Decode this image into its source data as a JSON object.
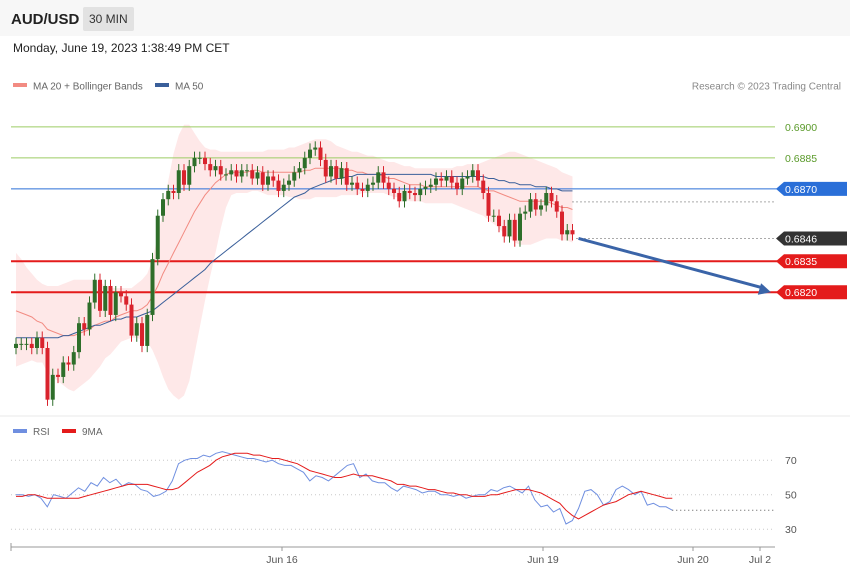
{
  "header": {
    "pair": "AUD/USD",
    "timeframe": "30 MIN",
    "datetime": "Monday, June 19, 2023 1:38:49 PM CET"
  },
  "legend": {
    "ma20": "MA 20 + Bollinger Bands",
    "ma50": "MA 50",
    "credit": "Research © 2023 Trading Central",
    "rsi": "RSI",
    "ma9": "9MA"
  },
  "colors": {
    "bull": "#2e6e2a",
    "bear": "#d9232d",
    "ma20": "#f28b82",
    "ma50": "#3a5f9a",
    "band": "#fde0e0",
    "resistance": "#9ccc65",
    "pivot": "#2a6fd8",
    "support": "#e41b1b",
    "current": "#333333",
    "rsi": "#6f8fe0",
    "ma9": "#e41b1b"
  },
  "chart_data": [
    {
      "type": "candlestick",
      "ylim": [
        0.6763,
        0.6913
      ],
      "x_ticks": [
        "Jun 16",
        "Jun 19",
        "Jun 20",
        "Jul 2"
      ],
      "levels": [
        {
          "value": 0.69,
          "label": "0.6900",
          "role": "resistance"
        },
        {
          "value": 0.6885,
          "label": "0.6885",
          "role": "resistance"
        },
        {
          "value": 0.687,
          "label": "0.6870",
          "role": "pivot"
        },
        {
          "value": 0.6846,
          "label": "0.6846",
          "role": "current"
        },
        {
          "value": 0.6835,
          "label": "0.6835",
          "role": "support"
        },
        {
          "value": 0.682,
          "label": "0.6820",
          "role": "support"
        }
      ],
      "forecast_arrow": {
        "from": 0.6846,
        "to": 0.682
      },
      "candles_close": [
        0.6795,
        0.6795,
        0.6795,
        0.6793,
        0.6798,
        0.6793,
        0.6768,
        0.678,
        0.6779,
        0.6786,
        0.6785,
        0.6791,
        0.6805,
        0.6802,
        0.6815,
        0.6826,
        0.6811,
        0.6823,
        0.6809,
        0.682,
        0.6818,
        0.6814,
        0.6799,
        0.6805,
        0.6794,
        0.6809,
        0.6836,
        0.6857,
        0.6865,
        0.6869,
        0.6868,
        0.6879,
        0.6872,
        0.6881,
        0.6885,
        0.6885,
        0.6882,
        0.6879,
        0.6881,
        0.6877,
        0.6877,
        0.6879,
        0.6876,
        0.6879,
        0.6879,
        0.6875,
        0.6878,
        0.6872,
        0.6876,
        0.6874,
        0.6869,
        0.6872,
        0.6874,
        0.6878,
        0.688,
        0.6885,
        0.6889,
        0.689,
        0.6884,
        0.6876,
        0.6881,
        0.6875,
        0.688,
        0.6872,
        0.6873,
        0.687,
        0.6869,
        0.6872,
        0.6873,
        0.6878,
        0.6873,
        0.687,
        0.6868,
        0.6864,
        0.6869,
        0.6868,
        0.6867,
        0.687,
        0.6871,
        0.6872,
        0.6875,
        0.6874,
        0.6876,
        0.6873,
        0.687,
        0.6875,
        0.6876,
        0.6879,
        0.6874,
        0.6868,
        0.6857,
        0.6857,
        0.6852,
        0.6847,
        0.6855,
        0.6845,
        0.6858,
        0.6859,
        0.6865,
        0.686,
        0.6862,
        0.6868,
        0.6864,
        0.6859,
        0.6848,
        0.685,
        0.6848
      ],
      "ma20": [
        0.6811,
        0.681,
        0.6809,
        0.6808,
        0.6806,
        0.6805,
        0.6802,
        0.6801,
        0.68,
        0.6799,
        0.6799,
        0.6799,
        0.68,
        0.6801,
        0.6802,
        0.6804,
        0.6805,
        0.6806,
        0.6806,
        0.6808,
        0.6809,
        0.681,
        0.6811,
        0.6811,
        0.6812,
        0.6814,
        0.6818,
        0.6823,
        0.6829,
        0.6834,
        0.6839,
        0.6844,
        0.6849,
        0.6854,
        0.6859,
        0.6863,
        0.6867,
        0.687,
        0.6873,
        0.6875,
        0.6877,
        0.6878,
        0.6878,
        0.6878,
        0.6878,
        0.6879,
        0.6879,
        0.6878,
        0.6878,
        0.6878,
        0.6878,
        0.6878,
        0.6878,
        0.6878,
        0.6878,
        0.6879,
        0.6879,
        0.688,
        0.688,
        0.688,
        0.688,
        0.688,
        0.688,
        0.6879,
        0.6879,
        0.6878,
        0.6878,
        0.6877,
        0.6877,
        0.6877,
        0.6876,
        0.6875,
        0.6875,
        0.6874,
        0.6873,
        0.6872,
        0.6872,
        0.6872,
        0.6871,
        0.6871,
        0.6871,
        0.6871,
        0.6871,
        0.6871,
        0.6871,
        0.6871,
        0.6871,
        0.6871,
        0.6871,
        0.687,
        0.6869,
        0.6869,
        0.6868,
        0.6867,
        0.6866,
        0.6865,
        0.6864,
        0.6864,
        0.6864,
        0.6864,
        0.6864,
        0.6864,
        0.6863,
        0.6862,
        0.6861,
        0.6861,
        0.686
      ],
      "bb_upper": [
        0.6839,
        0.6836,
        0.6832,
        0.6829,
        0.6826,
        0.6824,
        0.6823,
        0.6823,
        0.6823,
        0.6824,
        0.6825,
        0.6826,
        0.6826,
        0.6826,
        0.6826,
        0.6826,
        0.6825,
        0.6823,
        0.6822,
        0.6822,
        0.6822,
        0.6822,
        0.6822,
        0.6824,
        0.6826,
        0.6829,
        0.6836,
        0.6847,
        0.686,
        0.6874,
        0.6887,
        0.6896,
        0.6901,
        0.6901,
        0.6897,
        0.6893,
        0.689,
        0.6889,
        0.6889,
        0.6888,
        0.6888,
        0.6888,
        0.6888,
        0.6888,
        0.6888,
        0.6888,
        0.6888,
        0.6888,
        0.6889,
        0.6889,
        0.6889,
        0.6889,
        0.689,
        0.689,
        0.6891,
        0.6892,
        0.6893,
        0.6894,
        0.6894,
        0.6894,
        0.6893,
        0.6891,
        0.689,
        0.6889,
        0.6888,
        0.6888,
        0.6887,
        0.6886,
        0.6886,
        0.6885,
        0.6884,
        0.6883,
        0.6883,
        0.6882,
        0.6881,
        0.6881,
        0.688,
        0.688,
        0.688,
        0.688,
        0.688,
        0.688,
        0.688,
        0.688,
        0.6881,
        0.6881,
        0.6882,
        0.6882,
        0.6882,
        0.6883,
        0.6884,
        0.6885,
        0.6886,
        0.6887,
        0.6888,
        0.6888,
        0.6887,
        0.6886,
        0.6885,
        0.6884,
        0.6883,
        0.6882,
        0.6881,
        0.688,
        0.6878,
        0.6877,
        0.6876
      ],
      "bb_lower": [
        0.6784,
        0.6785,
        0.6786,
        0.6787,
        0.6786,
        0.6786,
        0.6781,
        0.6779,
        0.6777,
        0.6775,
        0.6773,
        0.6772,
        0.6774,
        0.6776,
        0.6778,
        0.6781,
        0.6784,
        0.6788,
        0.679,
        0.6793,
        0.6796,
        0.6797,
        0.6798,
        0.6798,
        0.6797,
        0.6796,
        0.6792,
        0.6786,
        0.6779,
        0.6773,
        0.677,
        0.6768,
        0.677,
        0.6777,
        0.679,
        0.6803,
        0.6816,
        0.6828,
        0.6839,
        0.6851,
        0.6861,
        0.6867,
        0.6868,
        0.6868,
        0.6868,
        0.6869,
        0.6869,
        0.6868,
        0.6867,
        0.6867,
        0.6867,
        0.6867,
        0.6866,
        0.6866,
        0.6865,
        0.6865,
        0.6865,
        0.6866,
        0.6866,
        0.6866,
        0.6866,
        0.6866,
        0.6867,
        0.6867,
        0.6867,
        0.6867,
        0.6868,
        0.6868,
        0.6868,
        0.6868,
        0.6868,
        0.6867,
        0.6866,
        0.6866,
        0.6865,
        0.6864,
        0.6864,
        0.6864,
        0.6863,
        0.6863,
        0.6863,
        0.6863,
        0.6863,
        0.6863,
        0.6862,
        0.6861,
        0.686,
        0.6859,
        0.6858,
        0.6857,
        0.6855,
        0.6853,
        0.6851,
        0.6848,
        0.6846,
        0.6844,
        0.6843,
        0.6843,
        0.6843,
        0.6844,
        0.6845,
        0.6846,
        0.6846,
        0.6846,
        0.6845,
        0.6845,
        0.6844
      ],
      "ma50": [
        0.6798,
        0.6798,
        0.6798,
        0.6798,
        0.6798,
        0.6798,
        0.6798,
        0.6798,
        0.6798,
        0.6799,
        0.6799,
        0.68,
        0.6801,
        0.6802,
        0.6803,
        0.6804,
        0.6804,
        0.6805,
        0.6806,
        0.6807,
        0.6807,
        0.6808,
        0.6808,
        0.6808,
        0.6809,
        0.681,
        0.6811,
        0.6813,
        0.6815,
        0.6817,
        0.6819,
        0.6821,
        0.6823,
        0.6825,
        0.6827,
        0.6829,
        0.6831,
        0.6834,
        0.6836,
        0.6838,
        0.684,
        0.6842,
        0.6844,
        0.6846,
        0.6848,
        0.685,
        0.6852,
        0.6854,
        0.6856,
        0.6858,
        0.686,
        0.6862,
        0.6864,
        0.6866,
        0.6867,
        0.6868,
        0.687,
        0.6871,
        0.6872,
        0.6873,
        0.6874,
        0.6875,
        0.6875,
        0.6876,
        0.6876,
        0.6877,
        0.6877,
        0.6877,
        0.6877,
        0.6877,
        0.6877,
        0.6877,
        0.6877,
        0.6877,
        0.6877,
        0.6877,
        0.6877,
        0.6877,
        0.6877,
        0.6877,
        0.6876,
        0.6876,
        0.6876,
        0.6876,
        0.6876,
        0.6876,
        0.6876,
        0.6876,
        0.6876,
        0.6876,
        0.6875,
        0.6875,
        0.6874,
        0.6874,
        0.6873,
        0.6873,
        0.6872,
        0.6872,
        0.6872,
        0.6871,
        0.6871,
        0.6871,
        0.687,
        0.687,
        0.6869,
        0.6869,
        0.6869
      ]
    },
    {
      "type": "line",
      "name": "RSI",
      "ylim": [
        22,
        80
      ],
      "y_ticks": [
        30,
        50,
        70
      ],
      "series": [
        {
          "name": "RSI",
          "values": [
            50,
            50,
            49,
            50,
            48,
            43,
            50,
            49,
            48,
            51,
            54,
            52,
            57,
            55,
            60,
            57,
            59,
            55,
            57,
            56,
            53,
            52,
            49,
            50,
            52,
            58,
            68,
            70,
            71,
            71,
            73,
            72,
            74,
            75,
            74,
            73,
            72,
            71,
            71,
            70,
            69,
            70,
            68,
            67,
            67,
            65,
            63,
            58,
            61,
            60,
            58,
            61,
            64,
            67,
            68,
            60,
            62,
            58,
            57,
            57,
            54,
            52,
            55,
            54,
            53,
            51,
            52,
            52,
            50,
            50,
            49,
            50,
            48,
            49,
            50,
            50,
            53,
            52,
            54,
            55,
            53,
            51,
            55,
            47,
            43,
            44,
            40,
            42,
            33,
            35,
            42,
            52,
            53,
            50,
            44,
            46,
            53,
            55,
            53,
            50,
            52,
            44,
            45,
            43,
            43,
            41
          ]
        },
        {
          "name": "9MA",
          "values": [
            49,
            49,
            50,
            50,
            49,
            48,
            48,
            48,
            48,
            48,
            48,
            49,
            50,
            51,
            52,
            53,
            54,
            55,
            56,
            56,
            56,
            56,
            55,
            54,
            53,
            53,
            54,
            57,
            60,
            63,
            65,
            67,
            70,
            72,
            73,
            74,
            74,
            74,
            73,
            73,
            72,
            71,
            71,
            70,
            69,
            68,
            66,
            64,
            63,
            62,
            61,
            60,
            60,
            61,
            62,
            61,
            61,
            61,
            60,
            59,
            58,
            56,
            56,
            55,
            55,
            54,
            53,
            53,
            52,
            51,
            51,
            50,
            50,
            49,
            49,
            49,
            50,
            50,
            51,
            52,
            53,
            53,
            53,
            52,
            51,
            49,
            47,
            45,
            41,
            38,
            36,
            38,
            40,
            42,
            44,
            45,
            46,
            48,
            50,
            51,
            52,
            51,
            50,
            49,
            48,
            48
          ]
        }
      ]
    }
  ]
}
